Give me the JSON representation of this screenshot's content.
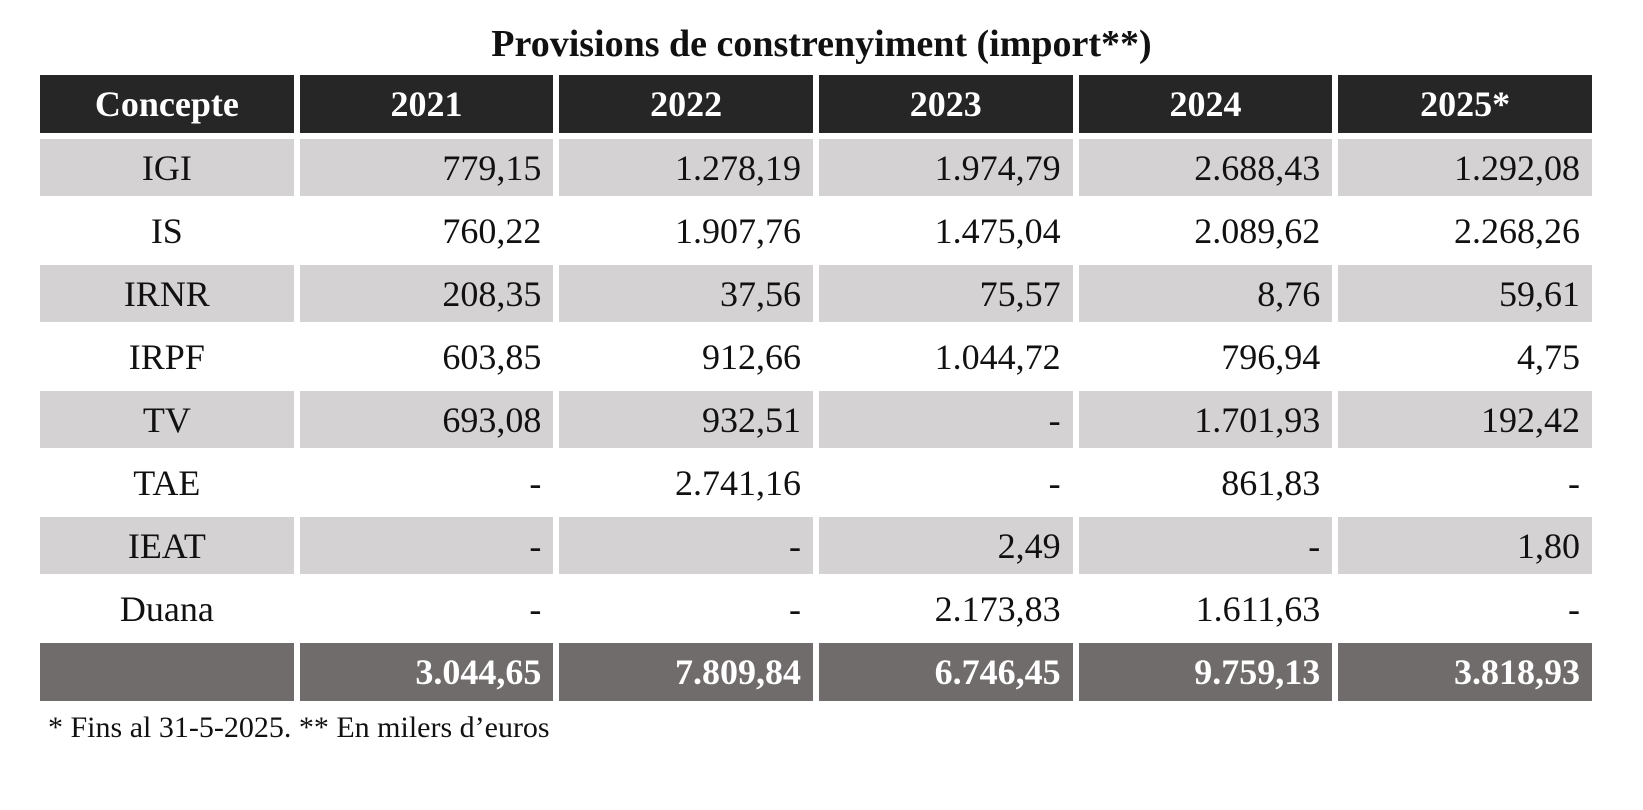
{
  "title": "Provisions de constrenyiment (import**)",
  "table": {
    "headers": [
      "Concepte",
      "2021",
      "2022",
      "2023",
      "2024",
      "2025*"
    ],
    "rows": [
      {
        "concept": "IGI",
        "values": [
          "779,15",
          "1.278,19",
          "1.974,79",
          "2.688,43",
          "1.292,08"
        ]
      },
      {
        "concept": "IS",
        "values": [
          "760,22",
          "1.907,76",
          "1.475,04",
          "2.089,62",
          "2.268,26"
        ]
      },
      {
        "concept": "IRNR",
        "values": [
          "208,35",
          "37,56",
          "75,57",
          "8,76",
          "59,61"
        ]
      },
      {
        "concept": "IRPF",
        "values": [
          "603,85",
          "912,66",
          "1.044,72",
          "796,94",
          "4,75"
        ]
      },
      {
        "concept": "TV",
        "values": [
          "693,08",
          "932,51",
          "-",
          "1.701,93",
          "192,42"
        ]
      },
      {
        "concept": "TAE",
        "values": [
          "-",
          "2.741,16",
          "-",
          "861,83",
          "-"
        ]
      },
      {
        "concept": "IEAT",
        "values": [
          "-",
          "-",
          "2,49",
          "-",
          "1,80"
        ]
      },
      {
        "concept": "Duana",
        "values": [
          "-",
          "-",
          "2.173,83",
          "1.611,63",
          "-"
        ]
      }
    ],
    "totals": {
      "label": "",
      "values": [
        "3.044,65",
        "7.809,84",
        "6.746,45",
        "9.759,13",
        "3.818,93"
      ]
    }
  },
  "footnote": "* Fins al 31-5-2025. ** En milers d’euros",
  "colors": {
    "header_bg": "#262626",
    "shade_row_bg": "#d4d2d2",
    "total_row_bg": "#706c6b"
  }
}
